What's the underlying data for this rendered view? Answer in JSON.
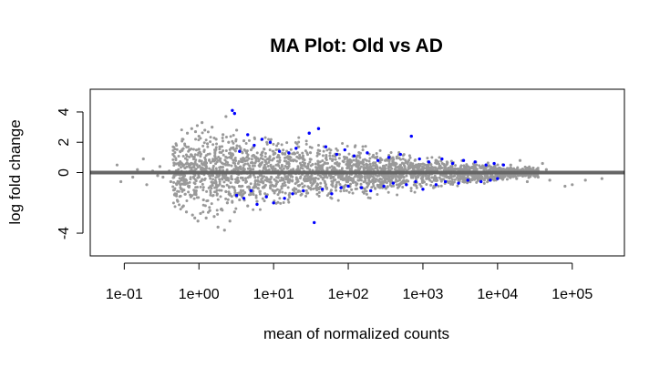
{
  "chart_data": {
    "type": "scatter",
    "title": "MA Plot: Old vs AD",
    "xlabel": "mean of normalized counts",
    "ylabel": "log fold change",
    "x_scale": "log10",
    "xlim": [
      0.035,
      500000
    ],
    "ylim": [
      -5.5,
      5.5
    ],
    "x_ticks": [
      {
        "value": 0.1,
        "label": "1e-01"
      },
      {
        "value": 1,
        "label": "1e+00"
      },
      {
        "value": 10,
        "label": "1e+01"
      },
      {
        "value": 100,
        "label": "1e+02"
      },
      {
        "value": 1000,
        "label": "1e+03"
      },
      {
        "value": 10000,
        "label": "1e+04"
      },
      {
        "value": 100000,
        "label": "1e+05"
      }
    ],
    "y_ticks": [
      {
        "value": 4,
        "label": "4"
      },
      {
        "value": 2,
        "label": "2"
      },
      {
        "value": 0,
        "label": "0"
      },
      {
        "value": -4,
        "label": "-4"
      }
    ],
    "reference_line": {
      "y": 0,
      "color": "#666666"
    },
    "grid": false,
    "legend": "none",
    "colors": {
      "non_significant": "#999999",
      "significant": "#0000ff",
      "frame": "#000000"
    },
    "series": [
      {
        "color": "#999999",
        "points": [
          [
            0.08,
            0.5
          ],
          [
            0.09,
            -0.6
          ],
          [
            0.13,
            -0.3
          ],
          [
            0.15,
            0.2
          ],
          [
            0.18,
            0.9
          ],
          [
            0.2,
            -0.8
          ],
          [
            0.24,
            0.1
          ],
          [
            0.28,
            -0.2
          ],
          [
            0.3,
            0.4
          ],
          [
            0.33,
            -0.3
          ],
          [
            0.4,
            0.1
          ],
          [
            0.42,
            -0.6
          ],
          [
            0.45,
            1.2
          ],
          [
            0.48,
            -1.4
          ],
          [
            0.5,
            1.8
          ],
          [
            0.52,
            -1.9
          ],
          [
            0.55,
            0.6
          ],
          [
            0.58,
            -0.5
          ],
          [
            0.6,
            2.2
          ],
          [
            0.62,
            -2.2
          ],
          [
            0.65,
            0.3
          ],
          [
            0.68,
            -2.6
          ],
          [
            0.7,
            2.6
          ],
          [
            0.72,
            -0.9
          ],
          [
            0.75,
            1.5
          ],
          [
            0.78,
            -1.6
          ],
          [
            0.8,
            2.9
          ],
          [
            0.82,
            -2.8
          ],
          [
            0.85,
            0.9
          ],
          [
            0.88,
            -3.0
          ],
          [
            0.9,
            2.7
          ],
          [
            0.92,
            -1.2
          ],
          [
            0.95,
            3.1
          ],
          [
            0.97,
            -3.2
          ],
          [
            1.0,
            2.4
          ],
          [
            1.05,
            -2.7
          ],
          [
            1.1,
            3.3
          ],
          [
            1.15,
            -1.8
          ],
          [
            1.2,
            2.8
          ],
          [
            1.25,
            -3.0
          ],
          [
            1.3,
            1.9
          ],
          [
            1.4,
            -2.5
          ],
          [
            1.5,
            3.0
          ],
          [
            1.6,
            -2.9
          ],
          [
            1.7,
            2.2
          ],
          [
            1.8,
            -3.6
          ],
          [
            1.9,
            1.7
          ],
          [
            2.0,
            -2.4
          ],
          [
            2.1,
            2.5
          ],
          [
            2.2,
            -3.8
          ],
          [
            2.3,
            3.7
          ],
          [
            2.4,
            -2.0
          ],
          [
            2.5,
            2.0
          ],
          [
            2.6,
            -3.2
          ],
          [
            2.8,
            1.6
          ],
          [
            3.0,
            -2.6
          ],
          [
            3.2,
            2.8
          ],
          [
            3.5,
            -1.8
          ],
          [
            4.0,
            2.1
          ],
          [
            4.5,
            -2.2
          ],
          [
            5.0,
            1.5
          ],
          [
            6.0,
            -1.9
          ],
          [
            7.0,
            1.3
          ],
          [
            8.0,
            -1.5
          ],
          [
            10.0,
            1.2
          ],
          [
            12.0,
            -1.3
          ],
          [
            15.0,
            1.0
          ],
          [
            20.0,
            -1.1
          ],
          [
            25.0,
            0.9
          ],
          [
            30.0,
            -1.0
          ],
          [
            40.0,
            0.7
          ],
          [
            60.0,
            -0.8
          ],
          [
            100.0,
            0.6
          ],
          [
            200.0,
            -0.6
          ],
          [
            500.0,
            0.5
          ],
          [
            1000.0,
            -0.5
          ],
          [
            2000.0,
            0.4
          ],
          [
            3000.0,
            -0.4
          ],
          [
            5000.0,
            0.3
          ],
          [
            8000.0,
            -0.3
          ],
          [
            12000.0,
            0.2
          ],
          [
            15000.0,
            0.5
          ],
          [
            18000.0,
            -0.4
          ],
          [
            20000.0,
            0.8
          ],
          [
            25000.0,
            -0.6
          ],
          [
            30000.0,
            0.3
          ],
          [
            35000.0,
            -0.3
          ],
          [
            40000.0,
            0.6
          ],
          [
            45000.0,
            0.2
          ],
          [
            50000.0,
            -0.5
          ],
          [
            80000.0,
            -0.9
          ],
          [
            100000.0,
            -0.8
          ],
          [
            150000.0,
            -0.5
          ],
          [
            250000.0,
            -0.4
          ]
        ]
      },
      {
        "color": "#0000ff",
        "points": [
          [
            2.8,
            4.1
          ],
          [
            3.0,
            3.9
          ],
          [
            3.2,
            -1.5
          ],
          [
            3.5,
            1.4
          ],
          [
            4.0,
            -1.7
          ],
          [
            4.5,
            2.5
          ],
          [
            5.0,
            -1.2
          ],
          [
            5.5,
            1.8
          ],
          [
            6.0,
            -2.1
          ],
          [
            7.0,
            2.2
          ],
          [
            8.0,
            -1.6
          ],
          [
            9.0,
            2.0
          ],
          [
            10.0,
            -2.0
          ],
          [
            12.0,
            1.4
          ],
          [
            14.0,
            -1.7
          ],
          [
            16.0,
            1.3
          ],
          [
            18.0,
            -1.4
          ],
          [
            20.0,
            1.6
          ],
          [
            25.0,
            -1.2
          ],
          [
            30.0,
            2.6
          ],
          [
            35.0,
            -3.3
          ],
          [
            40.0,
            2.9
          ],
          [
            45.0,
            -1.1
          ],
          [
            50.0,
            1.7
          ],
          [
            60.0,
            -1.4
          ],
          [
            70.0,
            1.2
          ],
          [
            80.0,
            -1.0
          ],
          [
            90.0,
            1.5
          ],
          [
            100.0,
            -0.9
          ],
          [
            120.0,
            1.1
          ],
          [
            150.0,
            -1.0
          ],
          [
            180.0,
            1.3
          ],
          [
            200.0,
            -1.2
          ],
          [
            250.0,
            0.8
          ],
          [
            300.0,
            -0.9
          ],
          [
            350.0,
            1.0
          ],
          [
            400.0,
            -0.7
          ],
          [
            500.0,
            1.2
          ],
          [
            600.0,
            -0.8
          ],
          [
            700.0,
            2.4
          ],
          [
            800.0,
            -0.6
          ],
          [
            900.0,
            0.9
          ],
          [
            1000.0,
            -1.1
          ],
          [
            1200.0,
            0.7
          ],
          [
            1500.0,
            -0.8
          ],
          [
            1800.0,
            0.9
          ],
          [
            2000.0,
            -0.6
          ],
          [
            2500.0,
            0.6
          ],
          [
            3000.0,
            -0.7
          ],
          [
            3500.0,
            0.8
          ],
          [
            4000.0,
            -0.5
          ],
          [
            5000.0,
            0.7
          ],
          [
            6000.0,
            -0.6
          ],
          [
            7000.0,
            0.5
          ],
          [
            8000.0,
            -0.5
          ],
          [
            9000.0,
            0.6
          ],
          [
            10000.0,
            -0.4
          ],
          [
            12000.0,
            0.5
          ]
        ]
      }
    ]
  }
}
